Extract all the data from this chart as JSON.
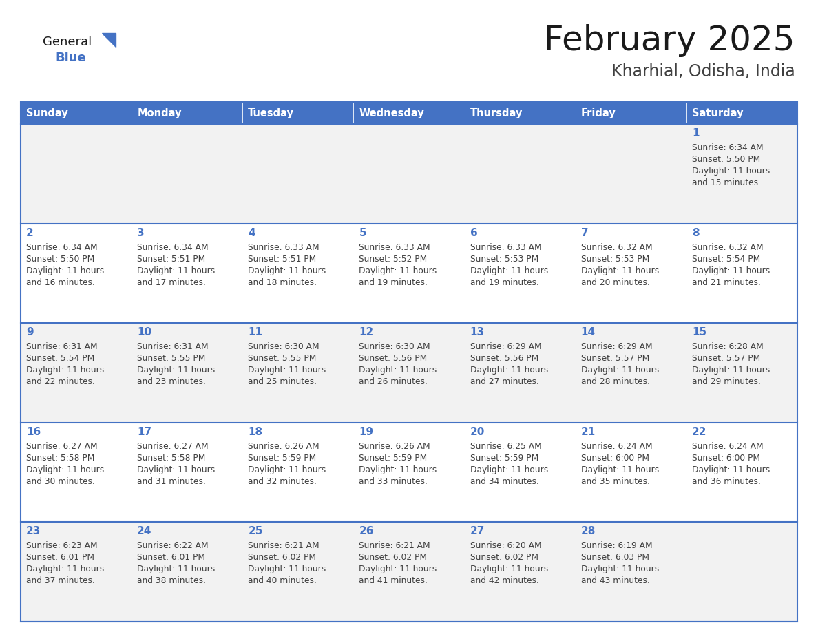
{
  "title": "February 2025",
  "subtitle": "Kharhial, Odisha, India",
  "header_bg": "#4472C4",
  "header_text": "#FFFFFF",
  "day_names": [
    "Sunday",
    "Monday",
    "Tuesday",
    "Wednesday",
    "Thursday",
    "Friday",
    "Saturday"
  ],
  "row_odd_bg": "#F2F2F2",
  "row_even_bg": "#FFFFFF",
  "cell_border": "#4472C4",
  "day_num_color": "#4472C4",
  "info_color": "#404040",
  "calendar": [
    [
      null,
      null,
      null,
      null,
      null,
      null,
      {
        "day": 1,
        "sunrise": "6:34 AM",
        "sunset": "5:50 PM",
        "daylight": "11 hours and 15 minutes."
      }
    ],
    [
      {
        "day": 2,
        "sunrise": "6:34 AM",
        "sunset": "5:50 PM",
        "daylight": "11 hours and 16 minutes."
      },
      {
        "day": 3,
        "sunrise": "6:34 AM",
        "sunset": "5:51 PM",
        "daylight": "11 hours and 17 minutes."
      },
      {
        "day": 4,
        "sunrise": "6:33 AM",
        "sunset": "5:51 PM",
        "daylight": "11 hours and 18 minutes."
      },
      {
        "day": 5,
        "sunrise": "6:33 AM",
        "sunset": "5:52 PM",
        "daylight": "11 hours and 19 minutes."
      },
      {
        "day": 6,
        "sunrise": "6:33 AM",
        "sunset": "5:53 PM",
        "daylight": "11 hours and 19 minutes."
      },
      {
        "day": 7,
        "sunrise": "6:32 AM",
        "sunset": "5:53 PM",
        "daylight": "11 hours and 20 minutes."
      },
      {
        "day": 8,
        "sunrise": "6:32 AM",
        "sunset": "5:54 PM",
        "daylight": "11 hours and 21 minutes."
      }
    ],
    [
      {
        "day": 9,
        "sunrise": "6:31 AM",
        "sunset": "5:54 PM",
        "daylight": "11 hours and 22 minutes."
      },
      {
        "day": 10,
        "sunrise": "6:31 AM",
        "sunset": "5:55 PM",
        "daylight": "11 hours and 23 minutes."
      },
      {
        "day": 11,
        "sunrise": "6:30 AM",
        "sunset": "5:55 PM",
        "daylight": "11 hours and 25 minutes."
      },
      {
        "day": 12,
        "sunrise": "6:30 AM",
        "sunset": "5:56 PM",
        "daylight": "11 hours and 26 minutes."
      },
      {
        "day": 13,
        "sunrise": "6:29 AM",
        "sunset": "5:56 PM",
        "daylight": "11 hours and 27 minutes."
      },
      {
        "day": 14,
        "sunrise": "6:29 AM",
        "sunset": "5:57 PM",
        "daylight": "11 hours and 28 minutes."
      },
      {
        "day": 15,
        "sunrise": "6:28 AM",
        "sunset": "5:57 PM",
        "daylight": "11 hours and 29 minutes."
      }
    ],
    [
      {
        "day": 16,
        "sunrise": "6:27 AM",
        "sunset": "5:58 PM",
        "daylight": "11 hours and 30 minutes."
      },
      {
        "day": 17,
        "sunrise": "6:27 AM",
        "sunset": "5:58 PM",
        "daylight": "11 hours and 31 minutes."
      },
      {
        "day": 18,
        "sunrise": "6:26 AM",
        "sunset": "5:59 PM",
        "daylight": "11 hours and 32 minutes."
      },
      {
        "day": 19,
        "sunrise": "6:26 AM",
        "sunset": "5:59 PM",
        "daylight": "11 hours and 33 minutes."
      },
      {
        "day": 20,
        "sunrise": "6:25 AM",
        "sunset": "5:59 PM",
        "daylight": "11 hours and 34 minutes."
      },
      {
        "day": 21,
        "sunrise": "6:24 AM",
        "sunset": "6:00 PM",
        "daylight": "11 hours and 35 minutes."
      },
      {
        "day": 22,
        "sunrise": "6:24 AM",
        "sunset": "6:00 PM",
        "daylight": "11 hours and 36 minutes."
      }
    ],
    [
      {
        "day": 23,
        "sunrise": "6:23 AM",
        "sunset": "6:01 PM",
        "daylight": "11 hours and 37 minutes."
      },
      {
        "day": 24,
        "sunrise": "6:22 AM",
        "sunset": "6:01 PM",
        "daylight": "11 hours and 38 minutes."
      },
      {
        "day": 25,
        "sunrise": "6:21 AM",
        "sunset": "6:02 PM",
        "daylight": "11 hours and 40 minutes."
      },
      {
        "day": 26,
        "sunrise": "6:21 AM",
        "sunset": "6:02 PM",
        "daylight": "11 hours and 41 minutes."
      },
      {
        "day": 27,
        "sunrise": "6:20 AM",
        "sunset": "6:02 PM",
        "daylight": "11 hours and 42 minutes."
      },
      {
        "day": 28,
        "sunrise": "6:19 AM",
        "sunset": "6:03 PM",
        "daylight": "11 hours and 43 minutes."
      },
      null
    ]
  ]
}
